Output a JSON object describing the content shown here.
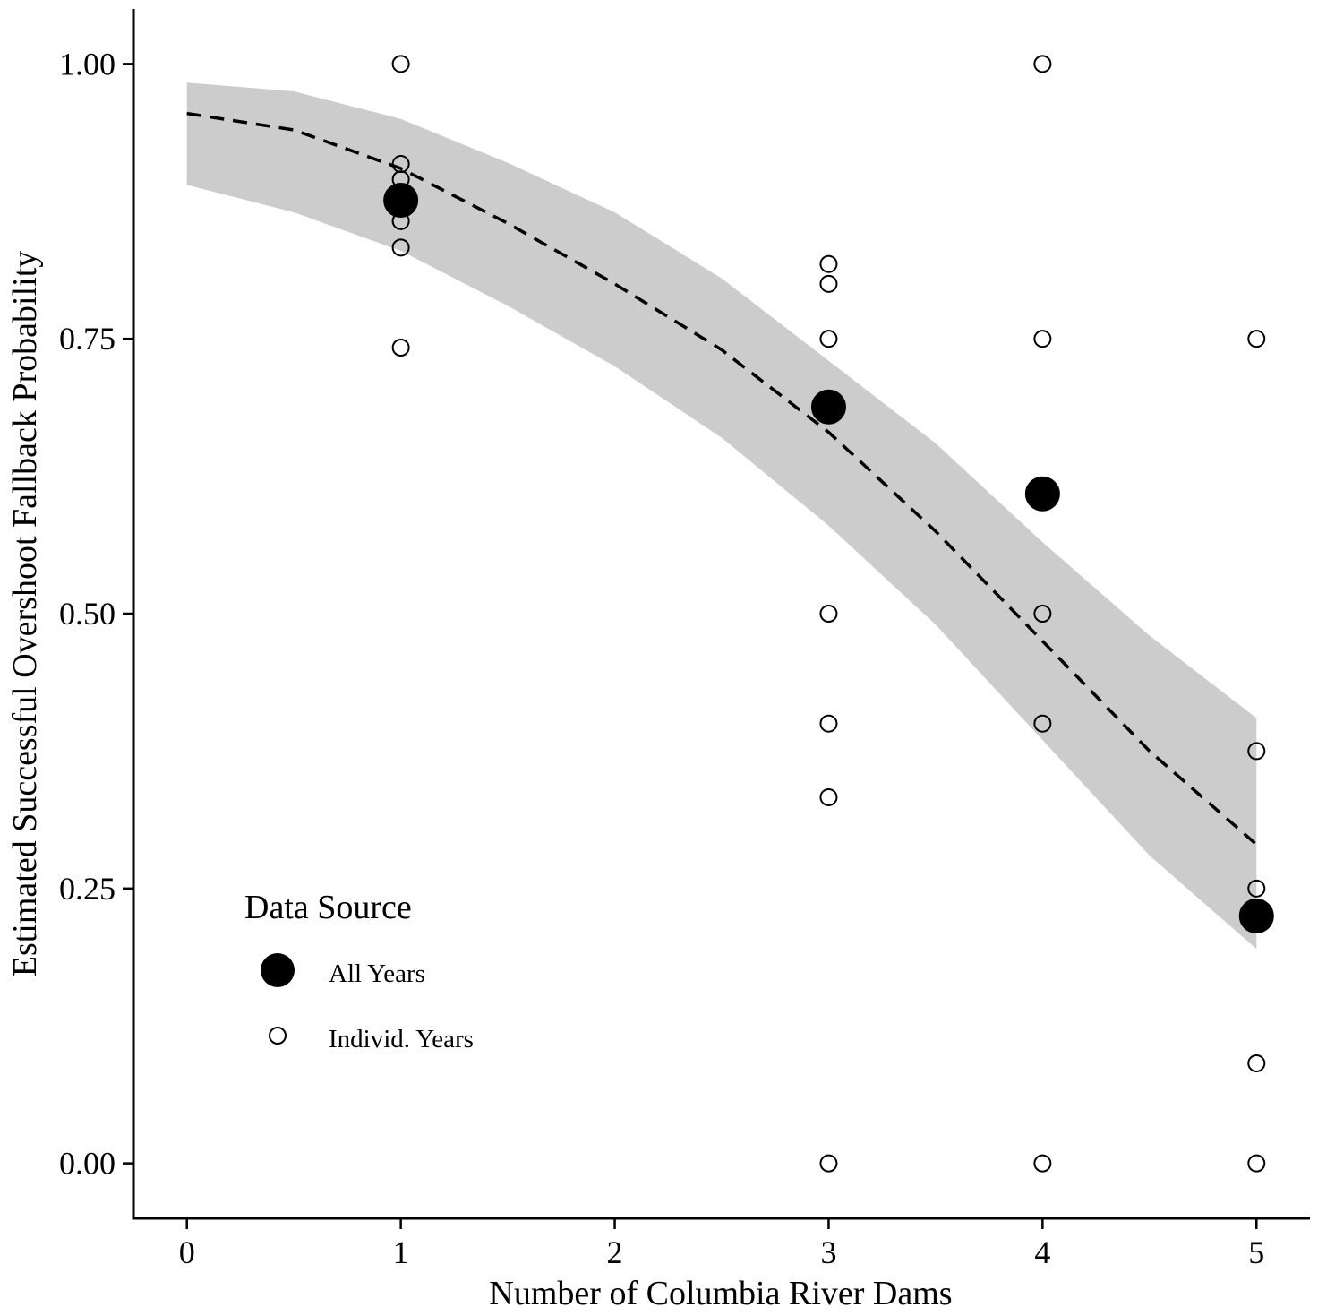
{
  "chart_data": {
    "type": "scatter",
    "xlabel": "Number of Columbia River Dams",
    "ylabel": "Estimated Successful Overshoot Fallback Probability",
    "xlim": [
      -0.25,
      5.25
    ],
    "ylim": [
      -0.05,
      1.05
    ],
    "x_ticks": [
      "0",
      "1",
      "2",
      "3",
      "4",
      "5"
    ],
    "y_ticks": [
      "0.00",
      "0.25",
      "0.50",
      "0.75",
      "1.00"
    ],
    "grid": false,
    "legend": {
      "title": "Data Source",
      "placement": "bottom-left",
      "entries": [
        "All Years",
        "Individ. Years"
      ]
    },
    "series": [
      {
        "name": "All Years",
        "marker": "filled-circle",
        "points": [
          {
            "x": 1,
            "y": 0.876
          },
          {
            "x": 3,
            "y": 0.688
          },
          {
            "x": 4,
            "y": 0.609
          },
          {
            "x": 5,
            "y": 0.225
          }
        ]
      },
      {
        "name": "Individ. Years",
        "marker": "open-circle",
        "points": [
          {
            "x": 1,
            "y": 1.0
          },
          {
            "x": 1,
            "y": 0.909
          },
          {
            "x": 1,
            "y": 0.895
          },
          {
            "x": 1,
            "y": 0.857
          },
          {
            "x": 1,
            "y": 0.833
          },
          {
            "x": 1,
            "y": 0.742
          },
          {
            "x": 3,
            "y": 0.818
          },
          {
            "x": 3,
            "y": 0.8
          },
          {
            "x": 3,
            "y": 0.75
          },
          {
            "x": 3,
            "y": 0.5
          },
          {
            "x": 3,
            "y": 0.4
          },
          {
            "x": 3,
            "y": 0.333
          },
          {
            "x": 3,
            "y": 0.0
          },
          {
            "x": 4,
            "y": 1.0
          },
          {
            "x": 4,
            "y": 0.75
          },
          {
            "x": 4,
            "y": 0.5
          },
          {
            "x": 4,
            "y": 0.4
          },
          {
            "x": 4,
            "y": 0.0
          },
          {
            "x": 5,
            "y": 0.75
          },
          {
            "x": 5,
            "y": 0.375
          },
          {
            "x": 5,
            "y": 0.25
          },
          {
            "x": 5,
            "y": 0.091
          },
          {
            "x": 5,
            "y": 0.0
          }
        ]
      }
    ],
    "fit": {
      "line_style": "dashed",
      "x": [
        0,
        0.5,
        1,
        1.5,
        2,
        2.5,
        3,
        3.5,
        4,
        4.5,
        5
      ],
      "y": [
        0.955,
        0.94,
        0.905,
        0.855,
        0.8,
        0.74,
        0.665,
        0.575,
        0.475,
        0.375,
        0.29
      ],
      "upper": [
        0.983,
        0.975,
        0.95,
        0.91,
        0.865,
        0.805,
        0.73,
        0.655,
        0.565,
        0.48,
        0.405
      ],
      "lower": [
        0.89,
        0.865,
        0.83,
        0.78,
        0.725,
        0.66,
        0.58,
        0.49,
        0.385,
        0.28,
        0.195
      ],
      "band_color": "#cccccc",
      "line_color": "#000000"
    }
  }
}
